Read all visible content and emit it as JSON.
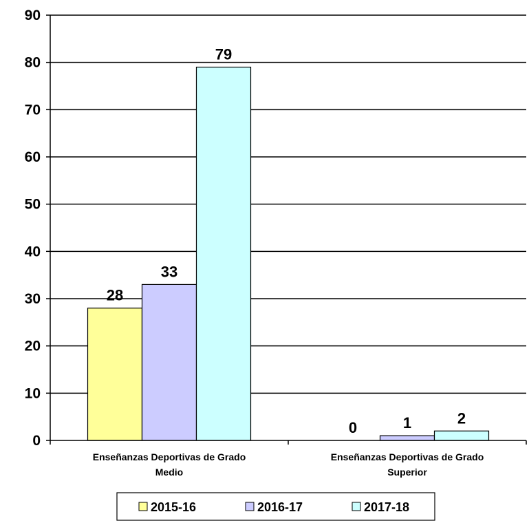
{
  "chart_data": {
    "type": "bar",
    "categories": [
      [
        "Enseñanzas Deportivas de Grado",
        "Medio"
      ],
      [
        "Enseñanzas Deportivas de Grado",
        "Superior"
      ]
    ],
    "series": [
      {
        "name": "2015-16",
        "values": [
          28,
          0
        ],
        "color": "#ffff99"
      },
      {
        "name": "2016-17",
        "values": [
          33,
          1
        ],
        "color": "#ccccff"
      },
      {
        "name": "2017-18",
        "values": [
          79,
          2
        ],
        "color": "#ccffff"
      }
    ],
    "ylim": [
      0,
      90
    ],
    "yticks": [
      0,
      10,
      20,
      30,
      40,
      50,
      60,
      70,
      80,
      90
    ],
    "grid": true,
    "legend": "bottom",
    "data_labels": true
  }
}
